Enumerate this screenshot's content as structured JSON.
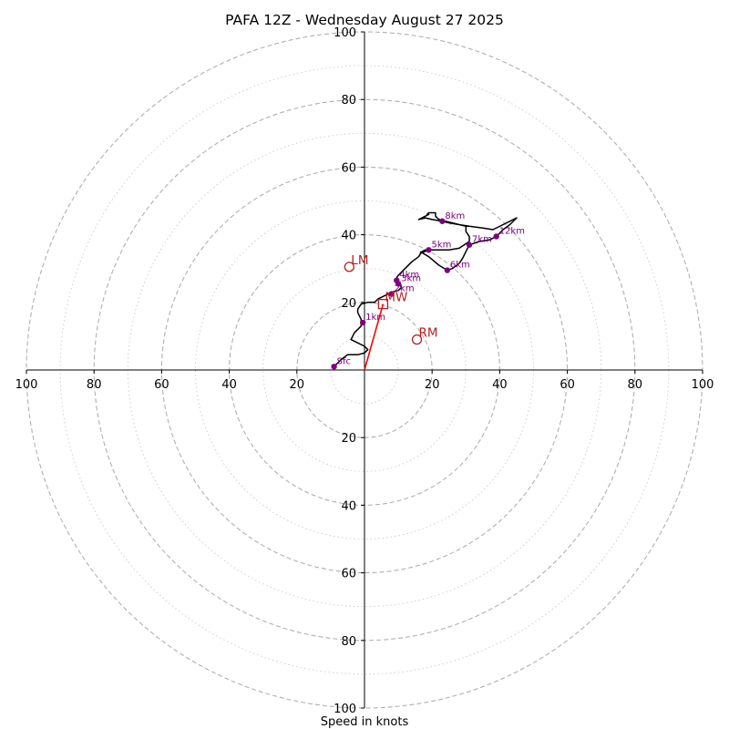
{
  "chart_data": {
    "type": "hodograph",
    "title": "PAFA 12Z - Wednesday August 27 2025",
    "xlabel": "Speed in knots",
    "xlim": [
      -100,
      100
    ],
    "ylim": [
      -100,
      100
    ],
    "ring_major": [
      20,
      40,
      60,
      80,
      100
    ],
    "ring_minor": [
      10,
      30,
      50,
      70,
      90
    ],
    "ticks": {
      "x_left": [
        "100",
        "80",
        "60",
        "40",
        "20"
      ],
      "x_right": [
        "20",
        "40",
        "60",
        "80",
        "100"
      ],
      "y_top": [
        "20",
        "40",
        "60",
        "80",
        "100"
      ],
      "y_bottom": [
        "20",
        "40",
        "60",
        "80",
        "100"
      ]
    },
    "colors": {
      "trace": "#000000",
      "height_markers": "#800080",
      "motion": "#b22222",
      "mean_wind_vector": "#ff0000",
      "grid": "#b0b0b0"
    },
    "trace": [
      [
        -9,
        1
      ],
      [
        -7,
        3
      ],
      [
        -5,
        4.5
      ],
      [
        -2,
        4.5
      ],
      [
        0,
        5
      ],
      [
        1,
        6
      ],
      [
        0,
        7
      ],
      [
        -2,
        8
      ],
      [
        -4,
        9
      ],
      [
        -3,
        11
      ],
      [
        -1,
        13
      ],
      [
        -1,
        15
      ],
      [
        -2,
        17
      ],
      [
        -2,
        18
      ],
      [
        -1,
        19.5
      ],
      [
        1,
        20
      ],
      [
        3,
        20
      ],
      [
        4,
        21
      ],
      [
        6,
        22
      ],
      [
        8,
        23
      ],
      [
        10,
        23.5
      ],
      [
        11,
        24.5
      ],
      [
        10,
        25.5
      ],
      [
        9,
        26.5
      ],
      [
        10,
        28
      ],
      [
        12,
        30
      ],
      [
        14,
        32
      ],
      [
        16,
        33.5
      ],
      [
        17,
        35
      ],
      [
        18,
        35.5
      ],
      [
        17.5,
        35
      ],
      [
        16.5,
        34.5
      ],
      [
        19,
        35.5
      ],
      [
        22,
        35.5
      ],
      [
        25,
        35.5
      ],
      [
        28,
        36
      ],
      [
        31,
        38
      ],
      [
        31,
        39.5
      ],
      [
        30,
        41
      ],
      [
        30,
        42.5
      ],
      [
        28,
        43
      ],
      [
        25,
        43.5
      ],
      [
        23,
        44
      ],
      [
        20,
        44.5
      ],
      [
        18,
        45
      ],
      [
        16,
        44.5
      ],
      [
        17,
        45
      ],
      [
        18,
        45.5
      ],
      [
        19,
        46
      ],
      [
        18.5,
        46
      ],
      [
        19,
        46.5
      ],
      [
        21,
        46.5
      ],
      [
        21,
        45.5
      ],
      [
        22,
        44.5
      ],
      [
        24,
        44
      ],
      [
        26,
        43.5
      ],
      [
        28,
        43
      ],
      [
        31,
        42.5
      ],
      [
        35,
        42
      ],
      [
        38,
        41.5
      ],
      [
        41,
        43
      ],
      [
        45,
        45
      ],
      [
        43,
        43
      ],
      [
        41,
        41.5
      ],
      [
        39,
        39.5
      ],
      [
        37,
        38.5
      ],
      [
        34,
        38
      ],
      [
        31,
        37
      ],
      [
        30,
        35
      ],
      [
        29,
        33
      ],
      [
        28,
        31.5
      ],
      [
        26,
        30
      ],
      [
        24.5,
        29.5
      ],
      [
        22,
        31
      ],
      [
        19,
        33.5
      ],
      [
        16.5,
        35
      ]
    ],
    "height_markers": [
      {
        "label": "Sfc",
        "u": -9,
        "v": 1
      },
      {
        "label": "1km",
        "u": -0.5,
        "v": 14
      },
      {
        "label": "2km",
        "u": 8,
        "v": 22.5
      },
      {
        "label": "3km",
        "u": 10,
        "v": 25.5
      },
      {
        "label": "4km",
        "u": 9.5,
        "v": 26.5
      },
      {
        "label": "5km",
        "u": 19,
        "v": 35.5
      },
      {
        "label": "6km",
        "u": 24.5,
        "v": 29.5
      },
      {
        "label": "7km",
        "u": 31,
        "v": 37
      },
      {
        "label": "8km",
        "u": 23,
        "v": 44
      },
      {
        "label": "12km",
        "u": 39,
        "v": 39.5
      }
    ],
    "storm_motion": [
      {
        "label": "LM",
        "u": -4.5,
        "v": 30.5,
        "marker": "circle"
      },
      {
        "label": "RM",
        "u": 15.5,
        "v": 9,
        "marker": "circle"
      },
      {
        "label": "MW",
        "u": 5.5,
        "v": 19.5,
        "marker": "square"
      }
    ],
    "mean_wind_vector": {
      "from": [
        0,
        0
      ],
      "to": [
        5.5,
        19.5
      ]
    },
    "grid": true,
    "legend": "none"
  }
}
